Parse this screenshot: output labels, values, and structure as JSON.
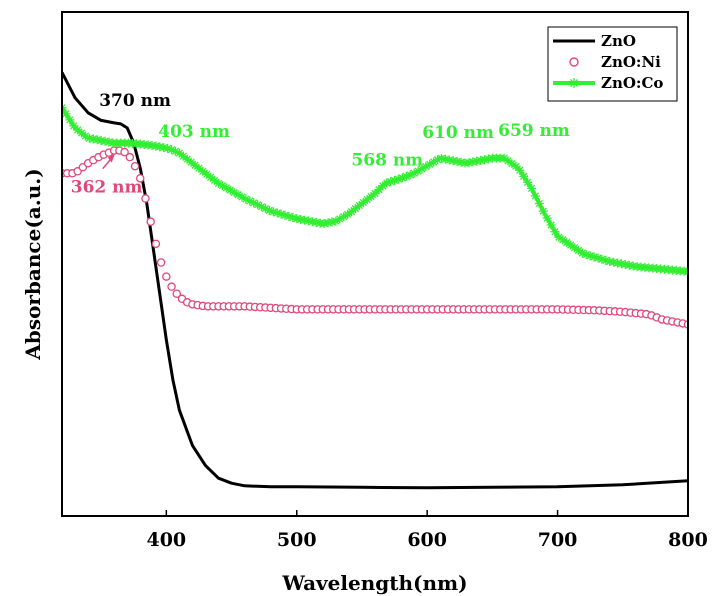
{
  "chart_data": {
    "type": "line",
    "title": "",
    "xlabel": "Wavelength(nm)",
    "ylabel": "Absorbance(a.u.)",
    "xlim": [
      320,
      800
    ],
    "ylim": [
      0,
      1
    ],
    "xticks": [
      400,
      500,
      600,
      700,
      800
    ],
    "xtick_labels": [
      "400",
      "500",
      "600",
      "700",
      "800"
    ],
    "yticks": [],
    "grid": false,
    "legend_position": "top-right",
    "series": [
      {
        "name": "ZnO",
        "color": "#000000",
        "marker": "none",
        "x": [
          320,
          330,
          340,
          350,
          360,
          365,
          370,
          375,
          380,
          385,
          390,
          395,
          400,
          405,
          410,
          420,
          430,
          440,
          450,
          460,
          480,
          500,
          550,
          600,
          650,
          700,
          750,
          800
        ],
        "y": [
          0.88,
          0.83,
          0.8,
          0.785,
          0.78,
          0.778,
          0.77,
          0.74,
          0.69,
          0.62,
          0.53,
          0.44,
          0.35,
          0.27,
          0.21,
          0.14,
          0.1,
          0.075,
          0.065,
          0.06,
          0.058,
          0.058,
          0.057,
          0.056,
          0.057,
          0.058,
          0.062,
          0.07
        ]
      },
      {
        "name": "ZnO:Ni",
        "color": "#e0487a",
        "marker": "circle",
        "x": [
          320,
          330,
          340,
          350,
          360,
          365,
          370,
          375,
          380,
          385,
          390,
          395,
          400,
          405,
          410,
          415,
          420,
          430,
          440,
          460,
          500,
          550,
          600,
          650,
          700,
          730,
          750,
          770,
          780,
          790,
          800
        ],
        "y": [
          0.68,
          0.68,
          0.7,
          0.715,
          0.725,
          0.725,
          0.72,
          0.7,
          0.67,
          0.62,
          0.56,
          0.51,
          0.475,
          0.45,
          0.435,
          0.425,
          0.42,
          0.416,
          0.416,
          0.416,
          0.41,
          0.41,
          0.41,
          0.41,
          0.41,
          0.408,
          0.405,
          0.4,
          0.39,
          0.385,
          0.38
        ]
      },
      {
        "name": "ZnO:Co",
        "color": "#33ee33",
        "marker": "asterisk",
        "x": [
          320,
          330,
          340,
          350,
          360,
          370,
          380,
          390,
          400,
          403,
          410,
          420,
          430,
          440,
          460,
          480,
          500,
          520,
          530,
          540,
          550,
          560,
          568,
          580,
          590,
          600,
          610,
          620,
          630,
          640,
          650,
          659,
          670,
          680,
          690,
          700,
          720,
          740,
          760,
          780,
          800
        ],
        "y": [
          0.81,
          0.77,
          0.75,
          0.745,
          0.74,
          0.74,
          0.738,
          0.735,
          0.73,
          0.728,
          0.72,
          0.7,
          0.68,
          0.66,
          0.63,
          0.605,
          0.59,
          0.58,
          0.585,
          0.6,
          0.62,
          0.64,
          0.66,
          0.67,
          0.68,
          0.695,
          0.71,
          0.705,
          0.7,
          0.705,
          0.71,
          0.71,
          0.69,
          0.65,
          0.6,
          0.555,
          0.52,
          0.505,
          0.495,
          0.49,
          0.485
        ]
      }
    ],
    "annotations": [
      {
        "text": "370 nm",
        "series": "ZnO",
        "x": 370,
        "color": "#000000"
      },
      {
        "text": "362 nm",
        "series": "ZnO:Ni",
        "x": 362,
        "color": "#e0487a"
      },
      {
        "text": "403 nm",
        "series": "ZnO:Co",
        "x": 403,
        "color": "#33ee33"
      },
      {
        "text": "568 nm",
        "series": "ZnO:Co",
        "x": 568,
        "color": "#33ee33"
      },
      {
        "text": "610 nm",
        "series": "ZnO:Co",
        "x": 610,
        "color": "#33ee33"
      },
      {
        "text": "659 nm",
        "series": "ZnO:Co",
        "x": 659,
        "color": "#33ee33"
      }
    ]
  }
}
